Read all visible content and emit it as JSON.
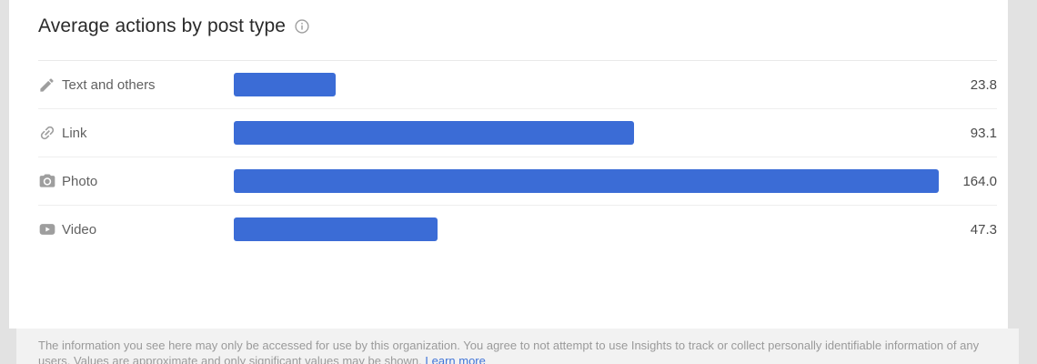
{
  "page": {
    "background": "#e2e2e2",
    "card_background": "#ffffff",
    "footer_background": "#f2f2f2"
  },
  "header": {
    "title": "Average actions by post type"
  },
  "chart_data": {
    "type": "bar",
    "orientation": "horizontal",
    "title": "Average actions by post type",
    "categories": [
      "Text and others",
      "Link",
      "Photo",
      "Video"
    ],
    "values": [
      23.8,
      93.1,
      164.0,
      47.3
    ],
    "value_labels": [
      "23.8",
      "93.1",
      "164.0",
      "47.3"
    ],
    "icons": [
      "pencil-icon",
      "link-icon",
      "camera-icon",
      "video-icon"
    ],
    "bar_color": "#3b6cd6",
    "xlim": [
      0,
      164
    ],
    "legend": "none",
    "grid": "off"
  },
  "footer": {
    "text": "The information you see here may only be accessed for use by this organization. You agree to not attempt to use Insights to track or collect personally identifiable information of any users. Values are approximate and only significant values may be shown.",
    "link_label": "Learn more"
  }
}
